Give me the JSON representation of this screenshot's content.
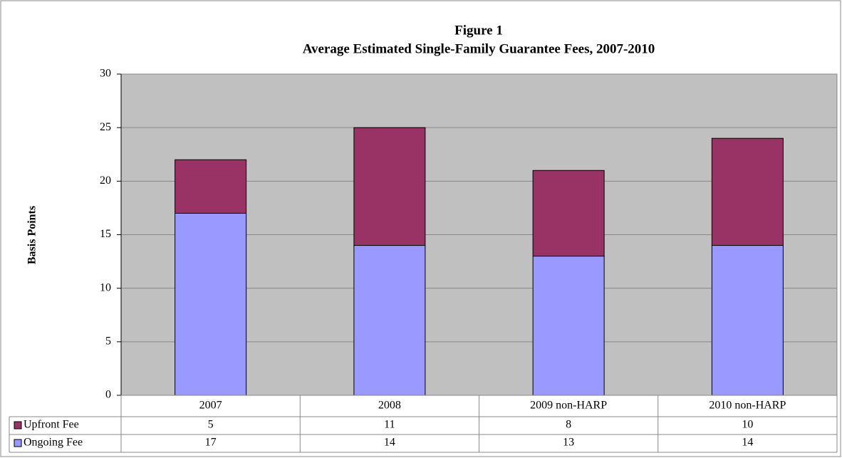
{
  "chart_data": {
    "type": "stacked-bar",
    "title": "Figure 1",
    "subtitle": "Average Estimated Single-Family Guarantee Fees, 2007-2010",
    "y_label": "Basis Points",
    "categories": [
      "2007",
      "2008",
      "2009 non-HARP",
      "2010 non-HARP"
    ],
    "series": [
      {
        "name": "Ongoing Fee",
        "color": "#9999ff",
        "values": [
          17,
          14,
          13,
          14
        ]
      },
      {
        "name": "Upfront Fee",
        "color": "#993366",
        "values": [
          5,
          11,
          8,
          10
        ]
      }
    ],
    "ylim": [
      0,
      30
    ],
    "yticks": [
      0,
      5,
      10,
      15,
      20,
      25,
      30
    ],
    "grid": true,
    "plot_background": "#c0c0c0"
  }
}
